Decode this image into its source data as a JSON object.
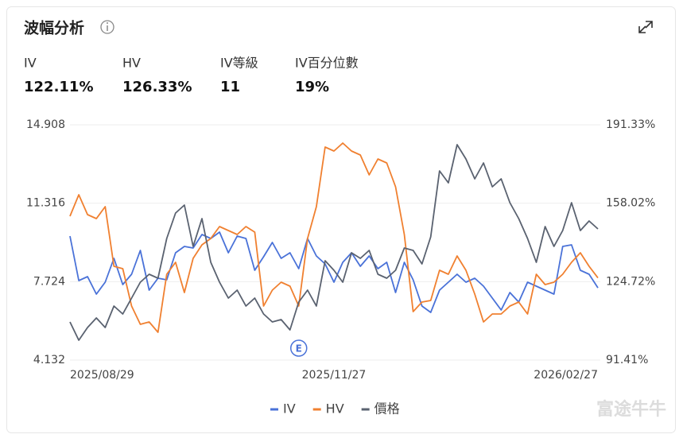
{
  "header": {
    "title": "波幅分析",
    "stats": [
      {
        "label": "IV",
        "value": "122.11%"
      },
      {
        "label": "HV",
        "value": "126.33%"
      },
      {
        "label": "IV等級",
        "value": "11"
      },
      {
        "label": "IV百分位數",
        "value": "19%"
      }
    ]
  },
  "chart_data": {
    "type": "line",
    "categories": [
      "2025/08/29",
      null,
      null,
      null,
      null,
      null,
      null,
      null,
      null,
      null,
      null,
      null,
      null,
      null,
      null,
      null,
      null,
      null,
      null,
      null,
      null,
      null,
      null,
      null,
      null,
      null,
      null,
      null,
      null,
      null,
      "2025/11/27",
      null,
      null,
      null,
      null,
      null,
      null,
      null,
      null,
      null,
      null,
      null,
      null,
      null,
      null,
      null,
      null,
      null,
      null,
      null,
      null,
      null,
      null,
      null,
      null,
      null,
      null,
      null,
      null,
      null,
      "2026/02/27"
    ],
    "ylim": [
      4.132,
      14.908
    ],
    "yticks": [
      4.132,
      7.724,
      11.316,
      14.908
    ],
    "y2lim": [
      91.41,
      191.33
    ],
    "y2ticks": [
      {
        "value": 91.41,
        "label": "91.41%"
      },
      {
        "value": 124.72,
        "label": "124.72%"
      },
      {
        "value": 158.02,
        "label": "158.02%"
      },
      {
        "value": 191.33,
        "label": "191.33%"
      }
    ],
    "grid": true,
    "legend": "bottom",
    "annotation": "E",
    "watermark": "富途牛牛",
    "series": [
      {
        "name": "IV",
        "color": "#4a72d8",
        "axis": "y2",
        "values": [
          144.07,
          125.17,
          126.86,
          119.43,
          124.49,
          134.62,
          123.48,
          127.87,
          138.0,
          121.12,
          126.18,
          125.51,
          136.98,
          139.68,
          139.01,
          144.75,
          143.06,
          145.76,
          136.98,
          144.07,
          143.06,
          129.56,
          135.29,
          141.37,
          134.62,
          136.98,
          130.23,
          143.06,
          135.63,
          132.26,
          124.49,
          132.93,
          136.98,
          131.24,
          135.63,
          130.23,
          132.93,
          120.1,
          132.93,
          125.51,
          114.37,
          111.66,
          121.12,
          124.49,
          127.87,
          124.49,
          126.18,
          122.8,
          117.74,
          112.68,
          120.1,
          116.05,
          124.49,
          122.8,
          121.12,
          119.43,
          139.68,
          140.36,
          129.56,
          127.87,
          122.11
        ]
      },
      {
        "name": "HV",
        "color": "#f08030",
        "axis": "y2",
        "values": [
          152.51,
          161.62,
          153.19,
          151.5,
          156.56,
          131.24,
          130.23,
          114.37,
          106.6,
          107.61,
          103.22,
          127.87,
          132.93,
          120.1,
          134.62,
          140.36,
          143.06,
          148.12,
          146.43,
          144.75,
          148.12,
          145.76,
          114.37,
          121.12,
          124.49,
          122.8,
          114.37,
          143.06,
          156.56,
          181.88,
          180.19,
          183.57,
          180.19,
          178.5,
          170.06,
          176.82,
          175.13,
          165.0,
          144.75,
          112.0,
          116.05,
          116.73,
          129.56,
          127.87,
          135.63,
          129.56,
          119.43,
          107.61,
          110.99,
          110.99,
          114.37,
          116.05,
          110.99,
          127.87,
          123.48,
          124.49,
          127.87,
          132.93,
          136.98,
          131.24,
          126.33
        ]
      },
      {
        "name": "價格",
        "color": "#5a6270",
        "axis": "y",
        "values": [
          5.879,
          5.042,
          5.625,
          6.061,
          5.625,
          6.608,
          6.243,
          6.972,
          7.7,
          8.064,
          7.882,
          9.702,
          10.867,
          11.231,
          9.338,
          10.612,
          8.61,
          7.7,
          6.972,
          7.336,
          6.608,
          6.972,
          6.243,
          5.879,
          5.989,
          5.515,
          6.79,
          7.336,
          6.608,
          8.683,
          8.246,
          7.7,
          9.047,
          8.792,
          9.156,
          8.064,
          7.882,
          8.246,
          9.265,
          9.156,
          8.537,
          9.775,
          12.796,
          12.25,
          13.998,
          13.342,
          12.432,
          13.16,
          12.068,
          12.432,
          11.34,
          10.612,
          9.702,
          8.61,
          10.248,
          9.338,
          10.066,
          11.34,
          10.066,
          10.503,
          10.139
        ]
      }
    ]
  }
}
